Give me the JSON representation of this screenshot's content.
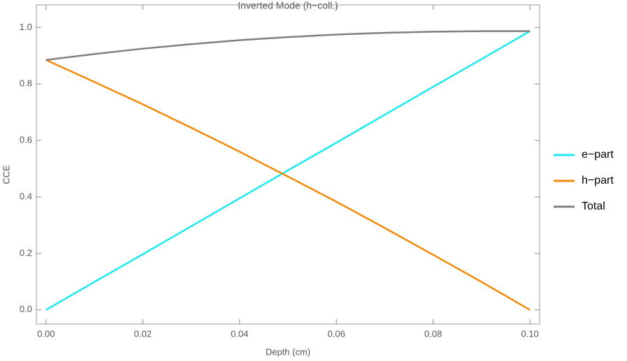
{
  "chart_data": {
    "type": "line",
    "title": "Inverted Mode (h−coll.)",
    "x_label": "Depth (cm)",
    "y_label": "CCE",
    "x": [
      0,
      0.01,
      0.02,
      0.03,
      0.04,
      0.05,
      0.06,
      0.07,
      0.08,
      0.09,
      0.1
    ],
    "series": [
      {
        "name": "e−part",
        "color": "#1ee8f0",
        "values": [
          0,
          0.099,
          0.197,
          0.296,
          0.395,
          0.494,
          0.592,
          0.691,
          0.79,
          0.888,
          0.987
        ]
      },
      {
        "name": "h−part",
        "color": "#f28a0c",
        "values": [
          0.885,
          0.807,
          0.728,
          0.645,
          0.56,
          0.472,
          0.383,
          0.29,
          0.195,
          0.099,
          0
        ]
      },
      {
        "name": "Total",
        "color": "#7f7f7f",
        "values": [
          0.885,
          0.906,
          0.925,
          0.941,
          0.955,
          0.966,
          0.975,
          0.981,
          0.985,
          0.987,
          0.987
        ]
      }
    ],
    "xlim": [
      -0.002,
      0.102
    ],
    "ylim": [
      -0.05,
      1.08
    ],
    "xticks": [
      {
        "value": 0,
        "label": "0.00"
      },
      {
        "value": 0.02,
        "label": "0.02"
      },
      {
        "value": 0.04,
        "label": "0.04"
      },
      {
        "value": 0.06,
        "label": "0.06"
      },
      {
        "value": 0.08,
        "label": "0.08"
      },
      {
        "value": 0.1,
        "label": "0.10"
      }
    ],
    "yticks": [
      {
        "value": 0,
        "label": "0.0"
      },
      {
        "value": 0.2,
        "label": "0.2"
      },
      {
        "value": 0.4,
        "label": "0.4"
      },
      {
        "value": 0.6,
        "label": "0.6"
      },
      {
        "value": 0.8,
        "label": "0.8"
      },
      {
        "value": 1,
        "label": "1.0"
      }
    ],
    "legend": "right"
  }
}
